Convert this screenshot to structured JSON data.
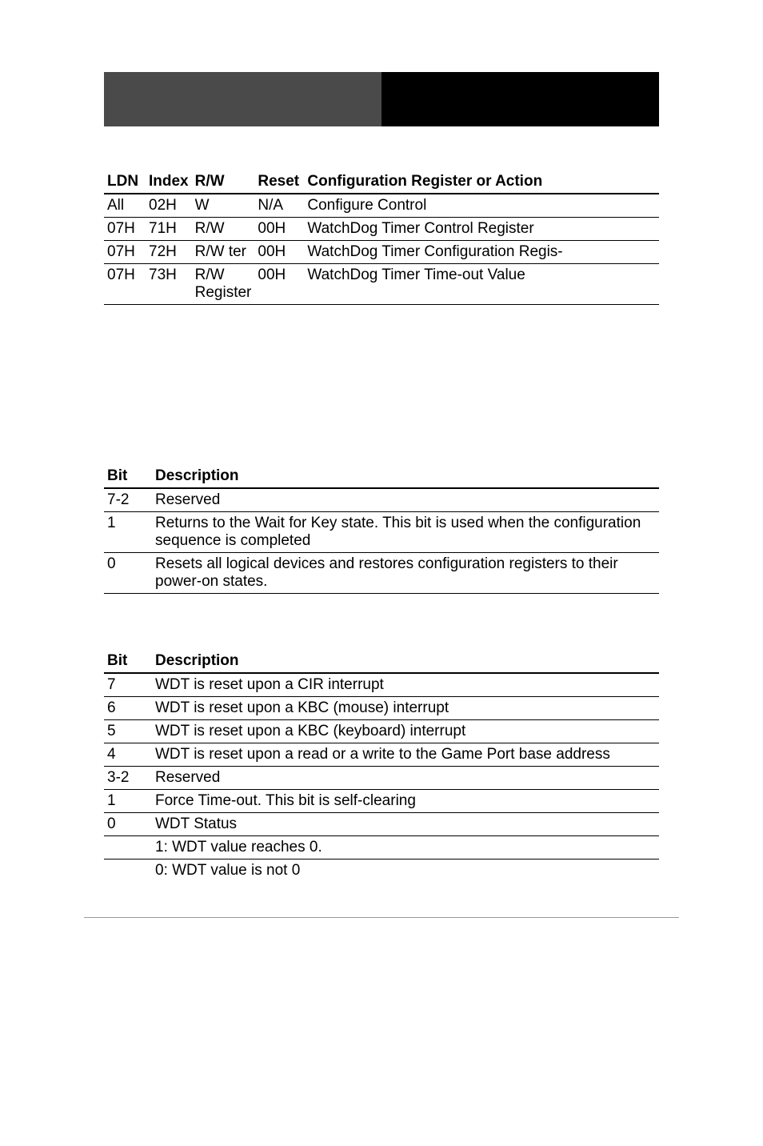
{
  "table1": {
    "headers": [
      "LDN",
      "Index",
      "R/W",
      "Reset",
      "Configuration Register or Action"
    ],
    "rows": [
      [
        "All",
        "02H",
        "W",
        "N/A",
        "Configure Control"
      ],
      [
        "07H",
        "71H",
        "R/W",
        "00H",
        "WatchDog Timer Control Register"
      ],
      [
        "07H",
        "72H",
        "R/W ter",
        "00H",
        "WatchDog Timer Configuration Regis-"
      ],
      [
        "07H",
        "73H",
        "R/W Register",
        "00H",
        "WatchDog Timer Time-out Value"
      ]
    ]
  },
  "table2": {
    "headers": [
      "Bit",
      "Description"
    ],
    "rows": [
      [
        "7-2",
        "Reserved"
      ],
      [
        "1",
        "Returns to the Wait for Key state. This bit is used when the configuration sequence is completed"
      ],
      [
        "0",
        "Resets all logical devices and restores configuration registers to their power-on states."
      ]
    ]
  },
  "table3": {
    "headers": [
      "Bit",
      "Description"
    ],
    "rows": [
      [
        "7",
        "WDT is reset upon a CIR interrupt"
      ],
      [
        "6",
        "WDT is reset upon a KBC (mouse) interrupt"
      ],
      [
        "5",
        "WDT is reset upon a KBC (keyboard) interrupt"
      ],
      [
        "4",
        "WDT is reset upon a read or a write to the Game Port base address"
      ],
      [
        "3-2",
        "Reserved"
      ],
      [
        "1",
        "Force Time-out. This bit is self-clearing"
      ],
      [
        "0",
        "WDT Status"
      ]
    ],
    "extra_rows": [
      [
        "",
        "1: WDT value reaches 0."
      ],
      [
        "",
        "0: WDT value is not 0"
      ]
    ]
  },
  "colors": {
    "header_left": "#4a4a4a",
    "header_right": "#000000",
    "background": "#ffffff",
    "text": "#000000",
    "border": "#000000",
    "footer_line": "#999999"
  }
}
